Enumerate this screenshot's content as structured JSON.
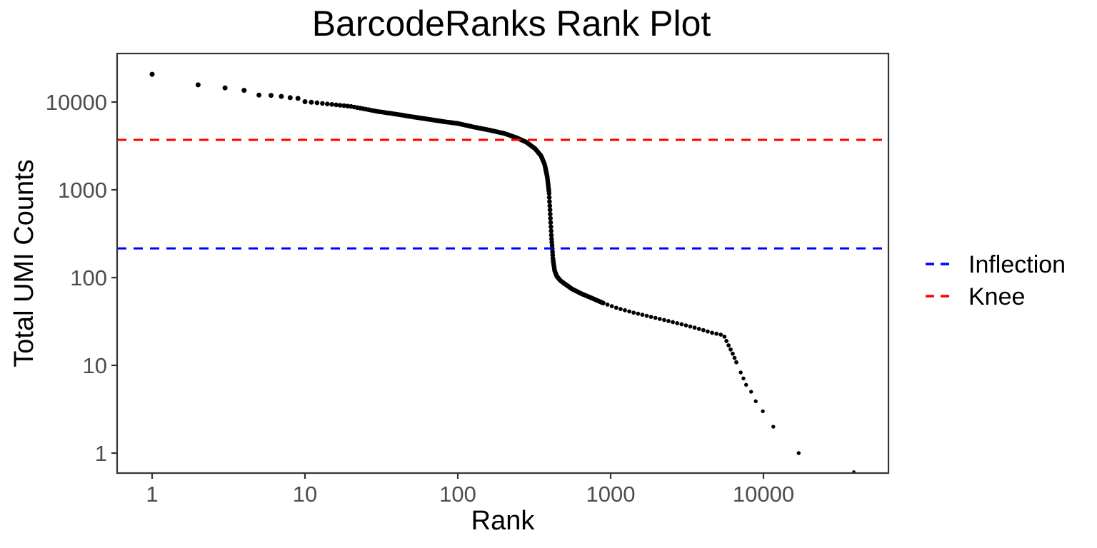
{
  "chart_data": {
    "type": "scatter",
    "title": "BarcodeRanks Rank Plot",
    "xlabel": "Rank",
    "ylabel": "Total UMI Counts",
    "x_scale": "log10",
    "y_scale": "log10",
    "x_tick_labels": [
      "1",
      "10",
      "100",
      "1000",
      "10000"
    ],
    "x_tick_values": [
      1,
      10,
      100,
      1000,
      10000
    ],
    "y_tick_labels": [
      "1",
      "10",
      "100",
      "1000",
      "10000"
    ],
    "y_tick_values": [
      1,
      10,
      100,
      1000,
      10000
    ],
    "xlim_log10": [
      -0.23,
      4.82
    ],
    "ylim_log10": [
      -0.23,
      4.55
    ],
    "grid": false,
    "background": "#FFFFFF",
    "point_color": "#000000",
    "axis_text_color": "#4D4D4D",
    "axis_line_color": "#333333",
    "legend_position": "right",
    "hlines": [
      {
        "label": "Inflection",
        "value": 215,
        "color": "#0000FF",
        "style": "dashed"
      },
      {
        "label": "Knee",
        "value": 3710,
        "color": "#FF0000",
        "style": "dashed"
      }
    ],
    "curve_anchors": [
      [
        1,
        20700
      ],
      [
        2,
        15700
      ],
      [
        3,
        14500
      ],
      [
        4,
        13600
      ],
      [
        5,
        12000
      ],
      [
        6,
        11900
      ],
      [
        7,
        11600
      ],
      [
        8,
        11200
      ],
      [
        9,
        11000
      ],
      [
        10,
        10100
      ],
      [
        12,
        9800
      ],
      [
        14,
        9500
      ],
      [
        17,
        9200
      ],
      [
        20,
        8900
      ],
      [
        25,
        8300
      ],
      [
        30,
        7800
      ],
      [
        40,
        7250
      ],
      [
        50,
        6800
      ],
      [
        65,
        6350
      ],
      [
        80,
        6000
      ],
      [
        100,
        5700
      ],
      [
        130,
        5150
      ],
      [
        160,
        4800
      ],
      [
        200,
        4400
      ],
      [
        240,
        3950
      ],
      [
        280,
        3500
      ],
      [
        320,
        2950
      ],
      [
        350,
        2450
      ],
      [
        370,
        1950
      ],
      [
        385,
        1400
      ],
      [
        395,
        950
      ],
      [
        400,
        640
      ],
      [
        405,
        430
      ],
      [
        410,
        290
      ],
      [
        415,
        215
      ],
      [
        420,
        160
      ],
      [
        430,
        120
      ],
      [
        445,
        103
      ],
      [
        470,
        92
      ],
      [
        500,
        85
      ],
      [
        560,
        74
      ],
      [
        650,
        65
      ],
      [
        760,
        58
      ],
      [
        900,
        51
      ],
      [
        1100,
        45
      ],
      [
        1400,
        40
      ],
      [
        1800,
        36
      ],
      [
        2300,
        32.5
      ],
      [
        3000,
        29
      ],
      [
        3800,
        26
      ],
      [
        4600,
        23.5
      ],
      [
        5500,
        22
      ],
      [
        5900,
        17
      ],
      [
        6300,
        13.5
      ],
      [
        6700,
        10.5
      ]
    ],
    "tail_points": [
      [
        7100,
        8.3
      ],
      [
        7400,
        7.1
      ],
      [
        7700,
        6.0
      ],
      [
        8300,
        5.0
      ],
      [
        8900,
        3.9
      ],
      [
        9900,
        3.0
      ],
      [
        11600,
        2.0
      ],
      [
        17000,
        1.0
      ],
      [
        39000,
        0.61
      ]
    ]
  }
}
